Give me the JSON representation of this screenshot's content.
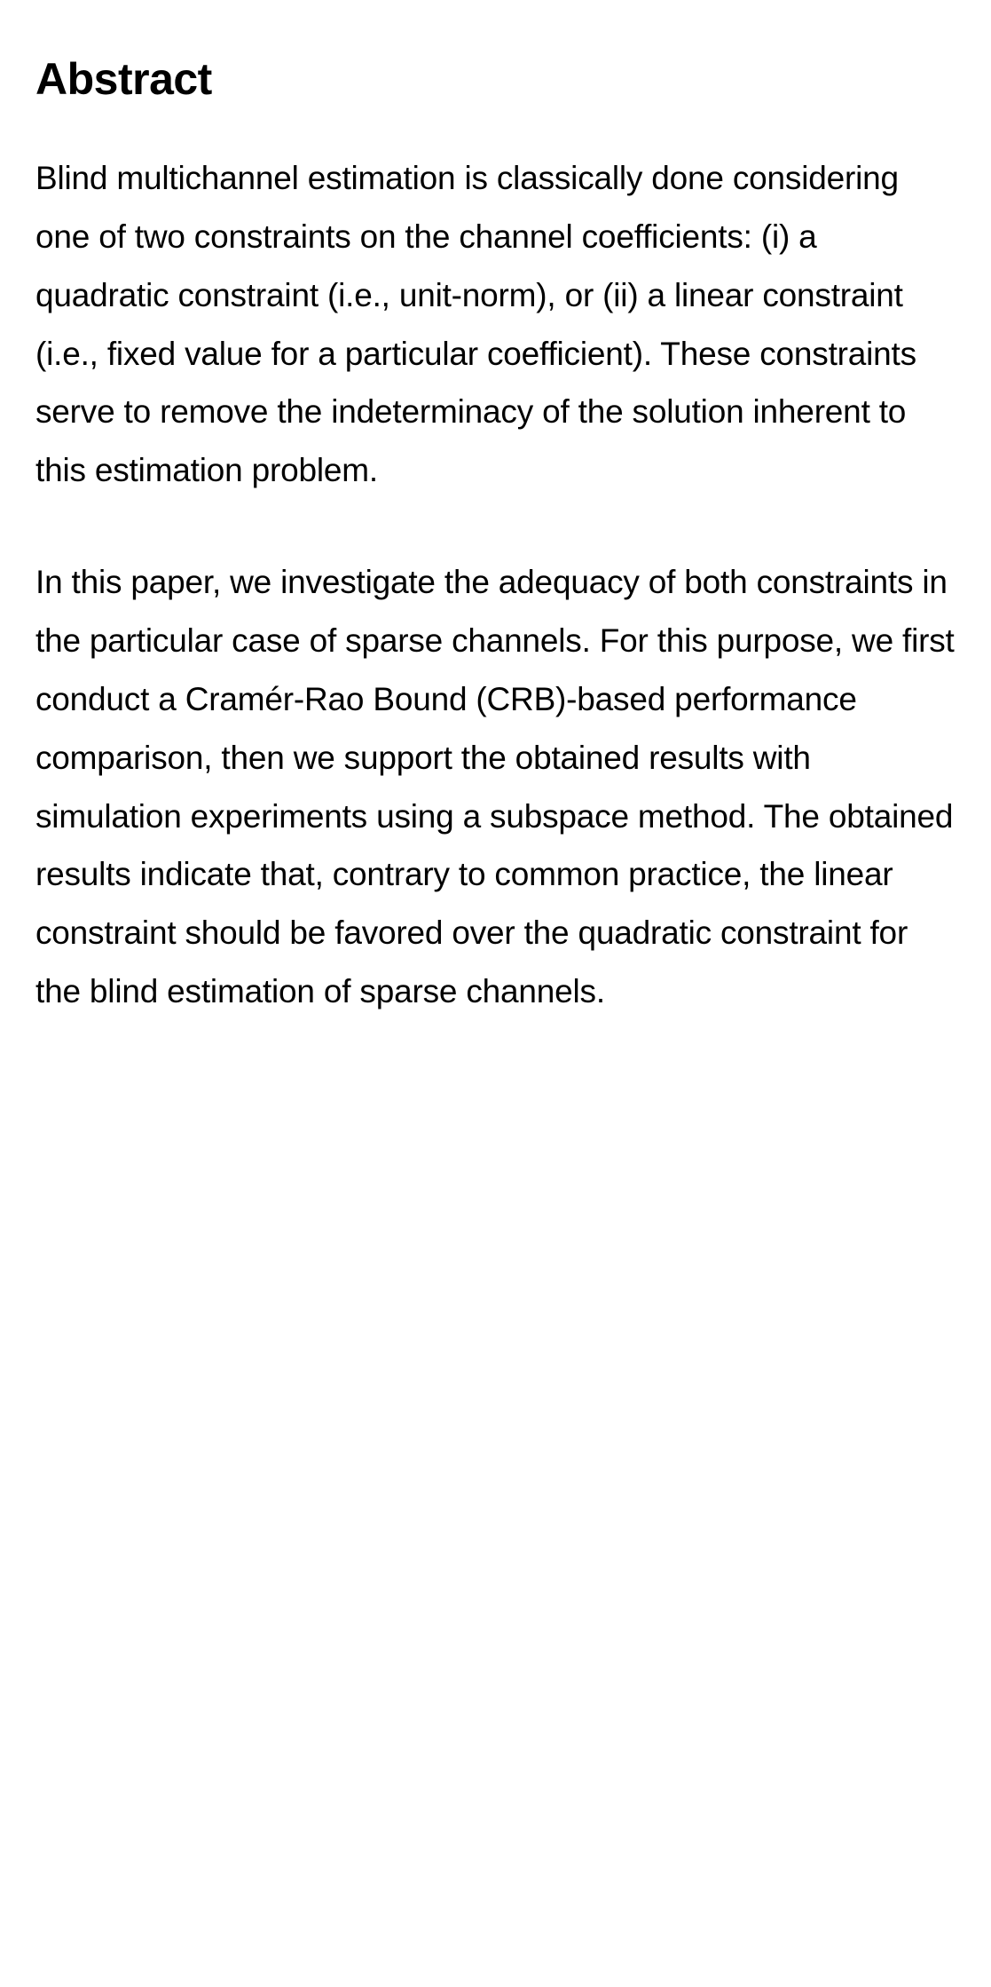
{
  "heading": "Abstract",
  "paragraphs": [
    "Blind multichannel estimation is classically done considering one of two constraints on the channel coefficients: (i) a quadratic constraint (i.e., unit-norm), or (ii) a linear constraint (i.e., fixed value for a particular coefficient). These constraints serve to remove the indeterminacy of the solution inherent to this estimation problem.",
    "In this paper, we investigate the adequacy of both constraints in the particular case of sparse channels. For this purpose, we first conduct a Cramér-Rao Bound (CRB)-based performance comparison, then we support the obtained results with simulation experiments using a subspace method. The obtained results indicate that, contrary to common practice, the linear constraint should be favored over the quadratic constraint for the blind estimation of sparse channels."
  ],
  "colors": {
    "background": "#ffffff",
    "text": "#000000"
  },
  "typography": {
    "heading_fontsize": 50,
    "heading_weight": 700,
    "body_fontsize": 37,
    "body_weight": 400,
    "body_lineheight": 1.78
  }
}
